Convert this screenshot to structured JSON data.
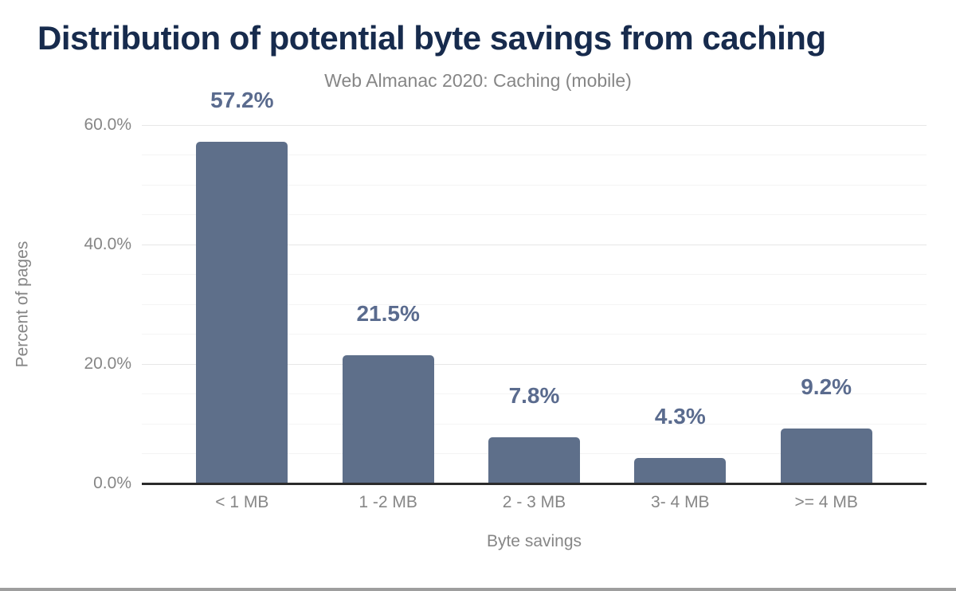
{
  "title": "Distribution of potential byte savings from caching",
  "subtitle": "Web Almanac 2020: Caching (mobile)",
  "colors": {
    "title_text": "#172b4d",
    "subtitle_text": "#868686",
    "bar_fill": "#5e6f8a",
    "data_label_text": "#5a6b8e",
    "axis_text": "#868686",
    "baseline": "#2b2b2b",
    "major_gridline": "#e7e7e7",
    "minor_gridline": "#f4f4f4",
    "page_bottom_border": "#9e9e9e"
  },
  "chart_data": {
    "type": "bar",
    "title": "Distribution of potential byte savings from caching",
    "subtitle": "Web Almanac 2020: Caching (mobile)",
    "categories": [
      "< 1 MB",
      "1 -2 MB",
      "2 - 3 MB",
      "3- 4 MB",
      ">= 4 MB"
    ],
    "values": [
      57.2,
      21.5,
      7.8,
      4.3,
      9.2
    ],
    "data_labels": [
      "57.2%",
      "21.5%",
      "7.8%",
      "4.3%",
      "9.2%"
    ],
    "xlabel": "Byte savings",
    "ylabel": "Percent of pages",
    "ylim": [
      0,
      60
    ],
    "yticks": [
      {
        "value": 0,
        "label": "0.0%"
      },
      {
        "value": 20,
        "label": "20.0%"
      },
      {
        "value": 40,
        "label": "40.0%"
      },
      {
        "value": 60,
        "label": "60.0%"
      }
    ],
    "minor_grid_step": 5,
    "grid": true,
    "legend": "none"
  }
}
